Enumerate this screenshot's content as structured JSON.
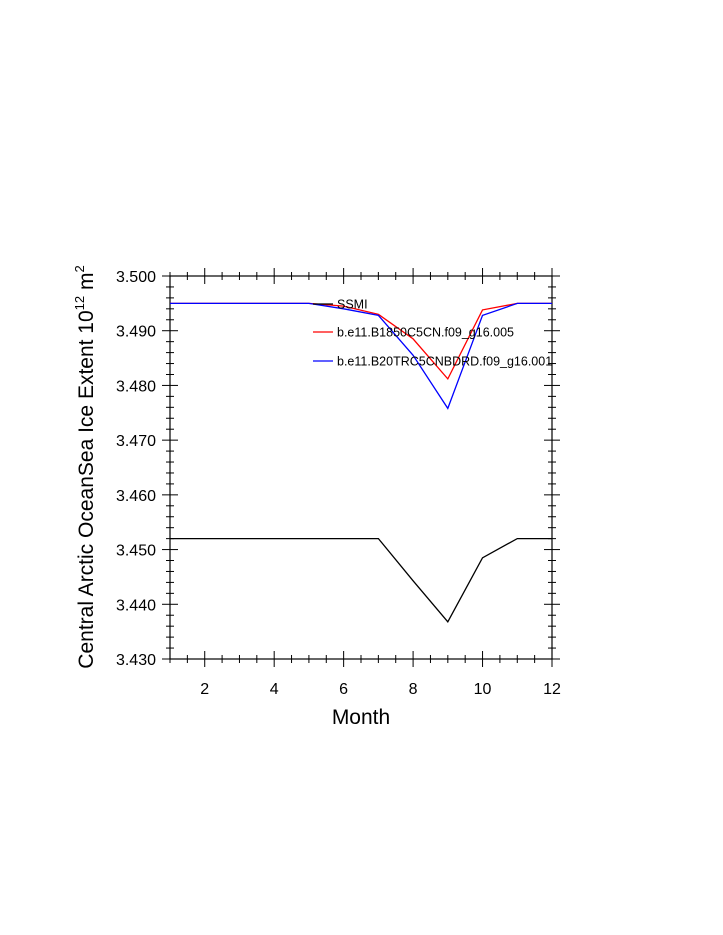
{
  "chart_data": {
    "type": "line",
    "xlabel": "Month",
    "ylabel": {
      "prefix": "Central Arctic OceanSea Ice Extent 10",
      "exponent": "12",
      "unit": " m",
      "unit_exponent": "2"
    },
    "xlim": [
      1,
      12
    ],
    "ylim": [
      3.43,
      3.5
    ],
    "xticks": [
      2,
      4,
      6,
      8,
      10,
      12
    ],
    "yticks": [
      3.43,
      3.44,
      3.45,
      3.46,
      3.47,
      3.48,
      3.49,
      3.5
    ],
    "ytick_labels": [
      "3.430",
      "3.440",
      "3.450",
      "3.460",
      "3.470",
      "3.480",
      "3.490",
      "3.500"
    ],
    "x": [
      1,
      2,
      3,
      4,
      5,
      6,
      7,
      8,
      9,
      10,
      11,
      12
    ],
    "series": [
      {
        "name": "SSMI",
        "color": "#000000",
        "values": [
          3.452,
          3.452,
          3.452,
          3.452,
          3.452,
          3.452,
          3.452,
          3.4443,
          3.4368,
          3.4485,
          3.452,
          3.452
        ]
      },
      {
        "name": "b.e11.B1850C5CN.f09_g16.005",
        "color": "#ff0000",
        "values": [
          3.495,
          3.495,
          3.495,
          3.495,
          3.495,
          3.4945,
          3.493,
          3.4885,
          3.4812,
          3.4938,
          3.495,
          3.495
        ]
      },
      {
        "name": "b.e11.B20TRC5CNBDRD.f09_g16.001",
        "color": "#0000ff",
        "values": [
          3.495,
          3.495,
          3.495,
          3.495,
          3.495,
          3.494,
          3.4928,
          3.4855,
          3.4758,
          3.4928,
          3.495,
          3.495
        ]
      }
    ],
    "legend_position": "top-right inside plot",
    "grid": false
  }
}
